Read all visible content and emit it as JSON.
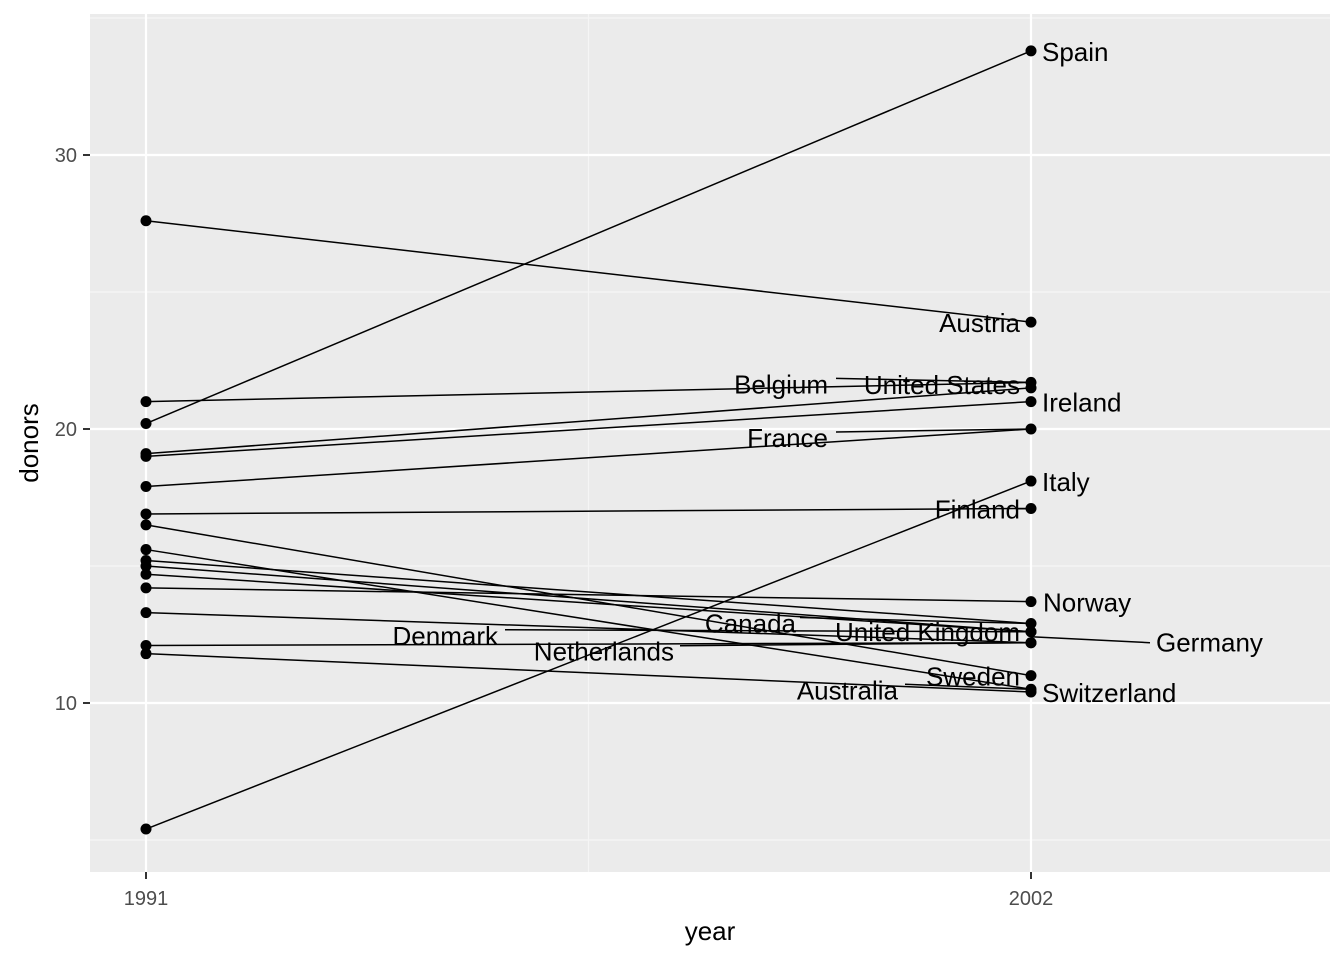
{
  "chart_data": {
    "type": "line",
    "xlabel": "year",
    "ylabel": "donors",
    "x": [
      1991,
      2002
    ],
    "x_ticks": [
      "1991",
      "2002"
    ],
    "y_ticks": [
      10,
      20,
      30
    ],
    "ylim": [
      4.9,
      35.0
    ],
    "grid": true,
    "series": [
      {
        "name": "Spain",
        "values": [
          20.2,
          33.8
        ]
      },
      {
        "name": "Austria",
        "values": [
          27.6,
          23.9
        ]
      },
      {
        "name": "Belgium",
        "values": [
          21.0,
          21.7
        ]
      },
      {
        "name": "United States",
        "values": [
          19.1,
          21.5
        ]
      },
      {
        "name": "Ireland",
        "values": [
          19.0,
          21.0
        ]
      },
      {
        "name": "France",
        "values": [
          17.9,
          20.0
        ]
      },
      {
        "name": "Italy",
        "values": [
          5.4,
          18.1
        ]
      },
      {
        "name": "Finland",
        "values": [
          16.9,
          17.1
        ]
      },
      {
        "name": "Norway",
        "values": [
          14.2,
          13.7
        ]
      },
      {
        "name": "Canada",
        "values": [
          15.2,
          12.9
        ]
      },
      {
        "name": "United Kingdom",
        "values": [
          14.7,
          12.6
        ]
      },
      {
        "name": "Denmark",
        "values": [
          15.0,
          12.6
        ]
      },
      {
        "name": "Netherlands",
        "values": [
          13.3,
          12.2
        ]
      },
      {
        "name": "Germany",
        "values": [
          12.1,
          12.2
        ]
      },
      {
        "name": "Sweden",
        "values": [
          16.5,
          11.0
        ]
      },
      {
        "name": "Australia",
        "values": [
          15.6,
          10.5
        ]
      },
      {
        "name": "Switzerland",
        "values": [
          11.8,
          10.4
        ]
      }
    ]
  }
}
